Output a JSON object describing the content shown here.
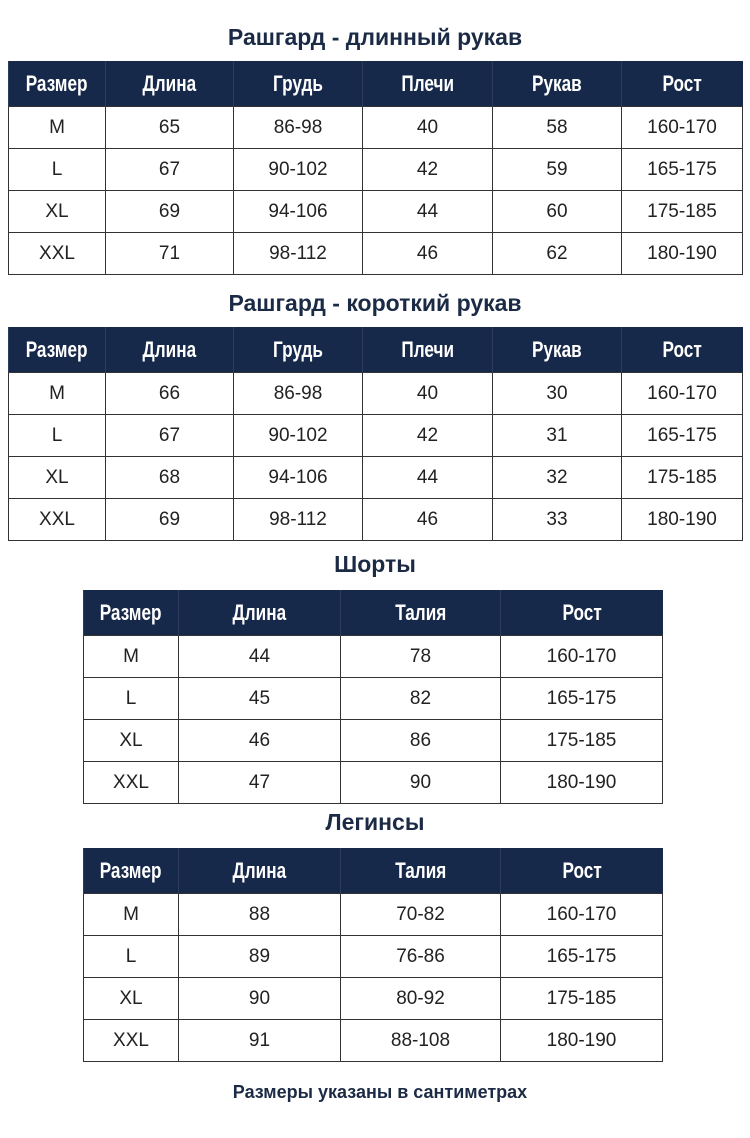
{
  "tables": [
    {
      "title": "Рашгард - длинный рукав",
      "headers": [
        "Размер",
        "Длина",
        "Грудь",
        "Плечи",
        "Рукав",
        "Рост"
      ],
      "rows": [
        [
          "M",
          "65",
          "86-98",
          "40",
          "58",
          "160-170"
        ],
        [
          "L",
          "67",
          "90-102",
          "42",
          "59",
          "165-175"
        ],
        [
          "XL",
          "69",
          "94-106",
          "44",
          "60",
          "175-185"
        ],
        [
          "XXL",
          "71",
          "98-112",
          "46",
          "62",
          "180-190"
        ]
      ]
    },
    {
      "title": "Рашгард - короткий рукав",
      "headers": [
        "Размер",
        "Длина",
        "Грудь",
        "Плечи",
        "Рукав",
        "Рост"
      ],
      "rows": [
        [
          "M",
          "66",
          "86-98",
          "40",
          "30",
          "160-170"
        ],
        [
          "L",
          "67",
          "90-102",
          "42",
          "31",
          "165-175"
        ],
        [
          "XL",
          "68",
          "94-106",
          "44",
          "32",
          "175-185"
        ],
        [
          "XXL",
          "69",
          "98-112",
          "46",
          "33",
          "180-190"
        ]
      ]
    },
    {
      "title": "Шорты",
      "headers": [
        "Размер",
        "Длина",
        "Талия",
        "Рост"
      ],
      "rows": [
        [
          "M",
          "44",
          "78",
          "160-170"
        ],
        [
          "L",
          "45",
          "82",
          "165-175"
        ],
        [
          "XL",
          "46",
          "86",
          "175-185"
        ],
        [
          "XXL",
          "47",
          "90",
          "180-190"
        ]
      ]
    },
    {
      "title": "Легинсы",
      "headers": [
        "Размер",
        "Длина",
        "Талия",
        "Рост"
      ],
      "rows": [
        [
          "M",
          "88",
          "70-82",
          "160-170"
        ],
        [
          "L",
          "89",
          "76-86",
          "165-175"
        ],
        [
          "XL",
          "90",
          "80-92",
          "175-185"
        ],
        [
          "XXL",
          "91",
          "88-108",
          "180-190"
        ]
      ]
    }
  ],
  "footer": "Размеры указаны в сантиметрах",
  "colors": {
    "header_bg": "#17294a",
    "title": "#1b2a45"
  }
}
